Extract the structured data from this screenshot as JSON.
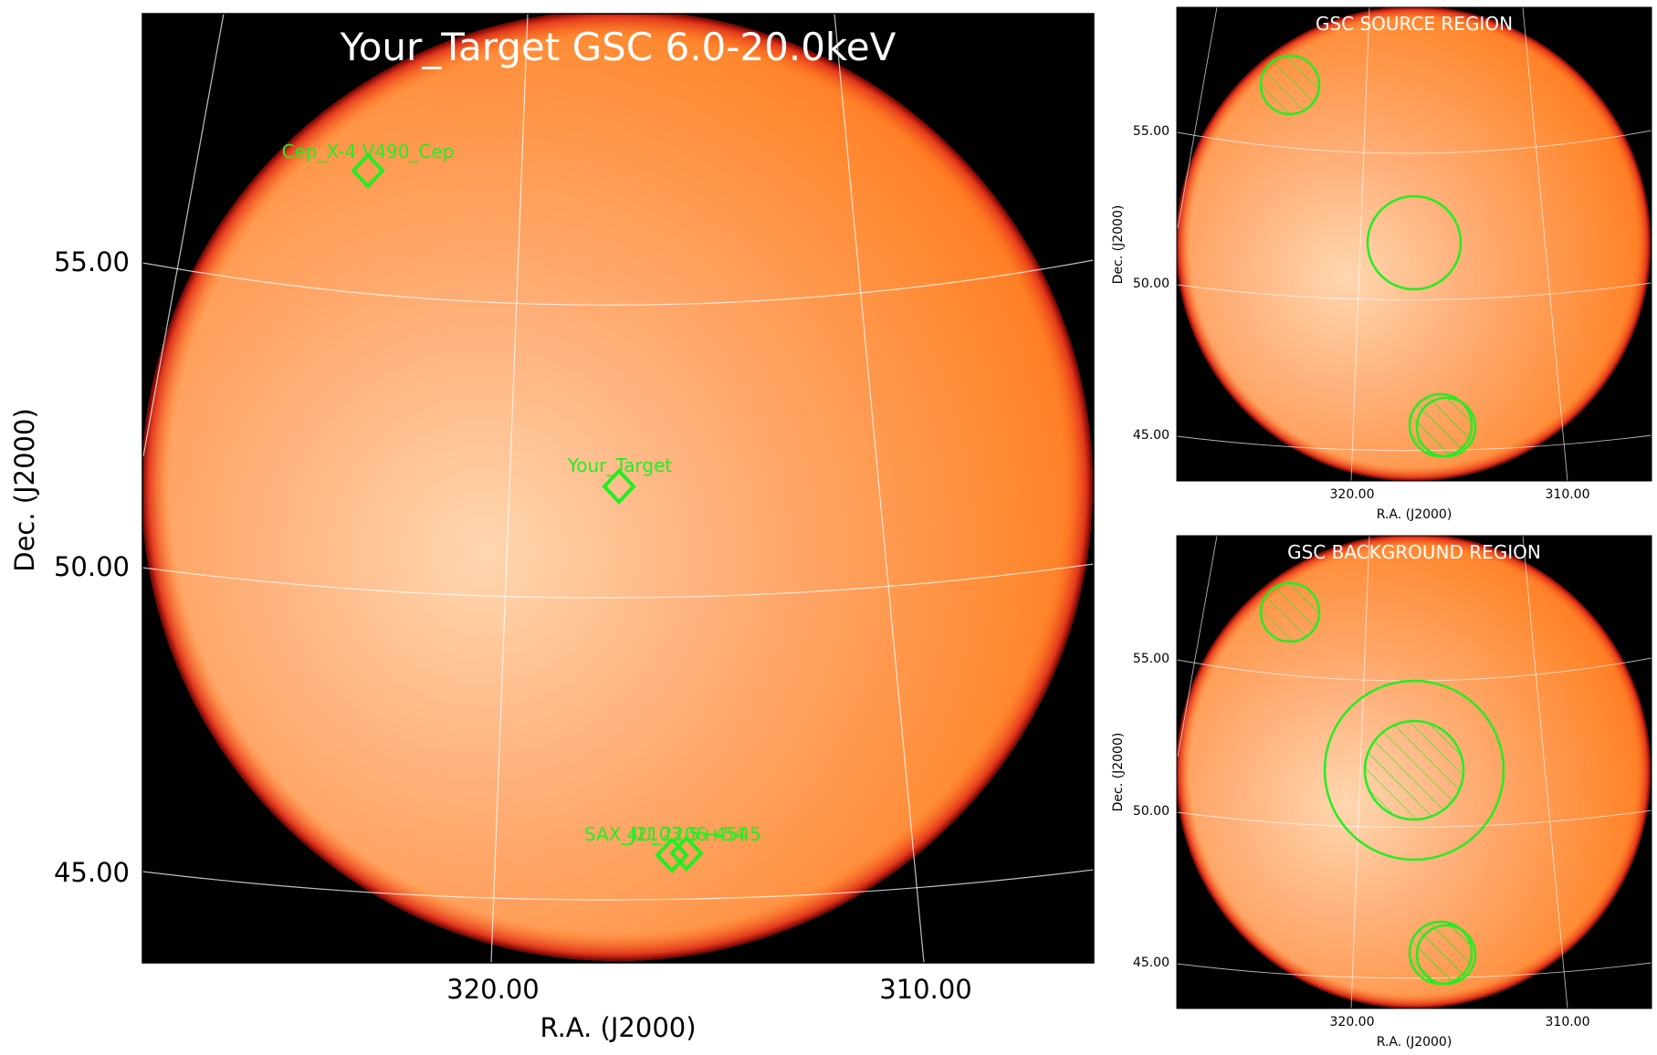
{
  "main_panel": {
    "title": "Your_Target GSC 6.0-20.0keV",
    "xlabel": "R.A. (J2000)",
    "ylabel": "Dec. (J2000)",
    "x_ticks": [
      "320.00",
      "310.00"
    ],
    "y_ticks": [
      "55.00",
      "50.00",
      "45.00"
    ],
    "sources": [
      {
        "label": "Cep_X-4 V490_Cep"
      },
      {
        "label": "Your_Target"
      },
      {
        "label": "SAX_J2103.5+4545"
      },
      {
        "label": "4U_2206+54"
      }
    ]
  },
  "source_panel": {
    "title": "GSC SOURCE REGION",
    "xlabel": "R.A. (J2000)",
    "ylabel": "Dec. (J2000)",
    "x_ticks": [
      "320.00",
      "310.00"
    ],
    "y_ticks": [
      "55.00",
      "50.00",
      "45.00"
    ]
  },
  "background_panel": {
    "title": "GSC BACKGROUND REGION",
    "xlabel": "R.A. (J2000)",
    "ylabel": "Dec. (J2000)",
    "x_ticks": [
      "320.00",
      "310.00"
    ],
    "y_ticks": [
      "55.00",
      "50.00",
      "45.00"
    ]
  },
  "colors": {
    "disk": "#ff7a1e",
    "disk_center": "#ffd3a8",
    "disk_edge": "#d01010",
    "region": "#22ee22",
    "grid": "#ffffff",
    "frame_bg": "#000000"
  }
}
